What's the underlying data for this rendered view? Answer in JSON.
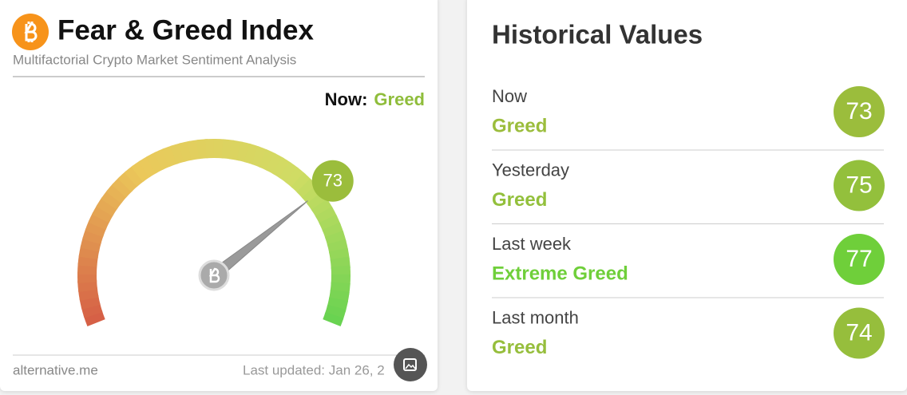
{
  "header": {
    "title": "Fear & Greed Index",
    "subtitle": "Multifactorial Crypto Market Sentiment Analysis"
  },
  "now": {
    "label": "Now:",
    "classification": "Greed",
    "color": "#8fbd3b"
  },
  "gauge": {
    "value": 73,
    "range": [
      0,
      100
    ],
    "color": "#9bbd3c"
  },
  "footer": {
    "source": "alternative.me",
    "updated": "Last updated: Jan 26, 2"
  },
  "historical": {
    "title": "Historical Values",
    "rows": [
      {
        "period": "Now",
        "classification": "Greed",
        "value": 73,
        "color": "#9bbd3c"
      },
      {
        "period": "Yesterday",
        "classification": "Greed",
        "value": 75,
        "color": "#93c03c"
      },
      {
        "period": "Last week",
        "classification": "Extreme Greed",
        "value": 77,
        "color": "#6fcf3a"
      },
      {
        "period": "Last month",
        "classification": "Greed",
        "value": 74,
        "color": "#96be3c"
      }
    ]
  }
}
